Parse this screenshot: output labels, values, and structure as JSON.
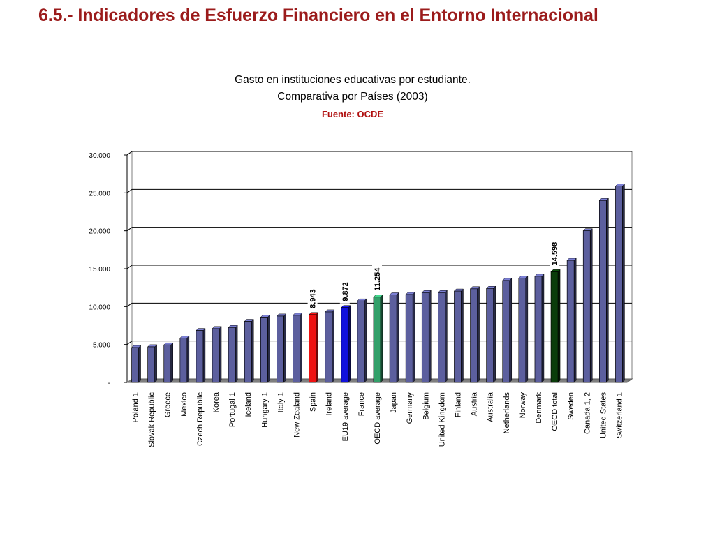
{
  "slide": {
    "title": "6.5.- Indicadores de Esfuerzo Financiero en el Entorno Internacional"
  },
  "chart_data": {
    "type": "bar",
    "title": "Gasto en instituciones educativas por estudiante.",
    "subtitle": "Comparativa por Países (2003)",
    "source": "Fuente: OCDE",
    "categories": [
      "Poland 1",
      "Slovak Republic",
      "Greece",
      "Mexico",
      "Czech Republic",
      "Korea",
      "Portugal 1",
      "Iceland",
      "Hungary 1",
      "Italy 1",
      "New Zealand",
      "Spain",
      "Ireland",
      "EU19 average",
      "France",
      "OECD average",
      "Japan",
      "Germany",
      "Belgium",
      "United Kingdom",
      "Finland",
      "Austria",
      "Australia",
      "Netherlands",
      "Norway",
      "Denmark",
      "OECD total",
      "Sweden",
      "Canada 1, 2",
      "United States",
      "Switzerland 1"
    ],
    "values": [
      4600,
      4700,
      4950,
      5850,
      6850,
      7100,
      7250,
      8050,
      8600,
      8750,
      8850,
      8943,
      9300,
      9872,
      10750,
      11254,
      11550,
      11600,
      11850,
      11850,
      12050,
      12350,
      12400,
      13450,
      13750,
      14000,
      14598,
      16100,
      20000,
      24000,
      25900
    ],
    "highlighted_labels": [
      {
        "category": "Spain",
        "label": "8.943"
      },
      {
        "category": "EU19 average",
        "label": "9.872"
      },
      {
        "category": "OECD average",
        "label": "11.254"
      },
      {
        "category": "OECD total",
        "label": "14.598"
      }
    ],
    "colors": {
      "default": "#5c5f9e",
      "Spain": "#ee1111",
      "EU19 average": "#1111dd",
      "OECD average": "#33a06a",
      "OECD total": "#0a3d0a"
    },
    "ylim": [
      0,
      30000
    ],
    "yticks": [
      0,
      5000,
      10000,
      15000,
      20000,
      25000,
      30000
    ],
    "ytick_labels": [
      "-",
      "5.000",
      "10.000",
      "15.000",
      "20.000",
      "25.000",
      "30.000"
    ],
    "grid": true,
    "legend": "none"
  }
}
